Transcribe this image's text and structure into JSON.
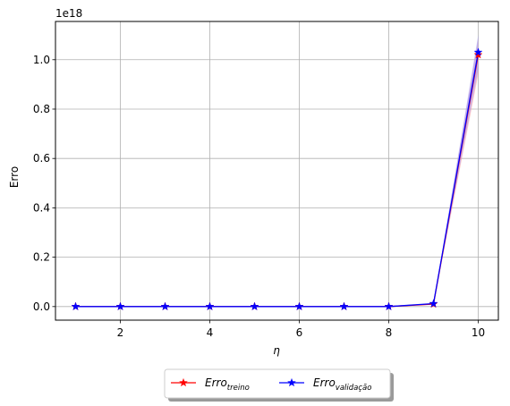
{
  "chart_data": {
    "type": "line",
    "x": [
      1,
      2,
      3,
      4,
      5,
      6,
      7,
      8,
      9,
      10
    ],
    "xlabel": "η",
    "ylabel": "Erro",
    "y_multiplier": "1e18",
    "xticks": [
      2,
      4,
      6,
      8,
      10
    ],
    "yticks": [
      0.0,
      0.2,
      0.4,
      0.6,
      0.8,
      1.0
    ],
    "ytick_labels": [
      "0.0",
      "0.2",
      "0.4",
      "0.6",
      "0.8",
      "1.0"
    ],
    "xlim": [
      0.55,
      10.45
    ],
    "ylim": [
      -0.055,
      1.155
    ],
    "grid": true,
    "legend_position": "bottom-center, below plot",
    "series": [
      {
        "name": "Erro",
        "name_subscript": "treino",
        "color": "#ff0000",
        "marker": "star",
        "values": [
          0.0,
          0.0,
          0.0,
          0.0,
          0.0,
          0.0,
          0.0,
          0.0,
          0.01,
          1.02
        ],
        "band_low": [
          0.0,
          0.0,
          0.0,
          0.0,
          0.0,
          0.0,
          0.0,
          0.0,
          0.008,
          0.94
        ],
        "band_high": [
          0.0,
          0.0,
          0.0,
          0.0,
          0.0,
          0.0,
          0.0,
          0.0,
          0.012,
          1.09
        ],
        "band_color": "#ff9999"
      },
      {
        "name": "Erro",
        "name_subscript": "validação",
        "color": "#0000ff",
        "marker": "star",
        "values": [
          0.0,
          0.0,
          0.0,
          0.0,
          0.0,
          0.0,
          0.0,
          0.0,
          0.012,
          1.03
        ],
        "band_low": [
          0.0,
          0.0,
          0.0,
          0.0,
          0.0,
          0.0,
          0.0,
          0.0,
          0.01,
          0.96
        ],
        "band_high": [
          0.0,
          0.0,
          0.0,
          0.0,
          0.0,
          0.0,
          0.0,
          0.0,
          0.014,
          1.1
        ],
        "band_color": "#9999ff"
      }
    ]
  }
}
